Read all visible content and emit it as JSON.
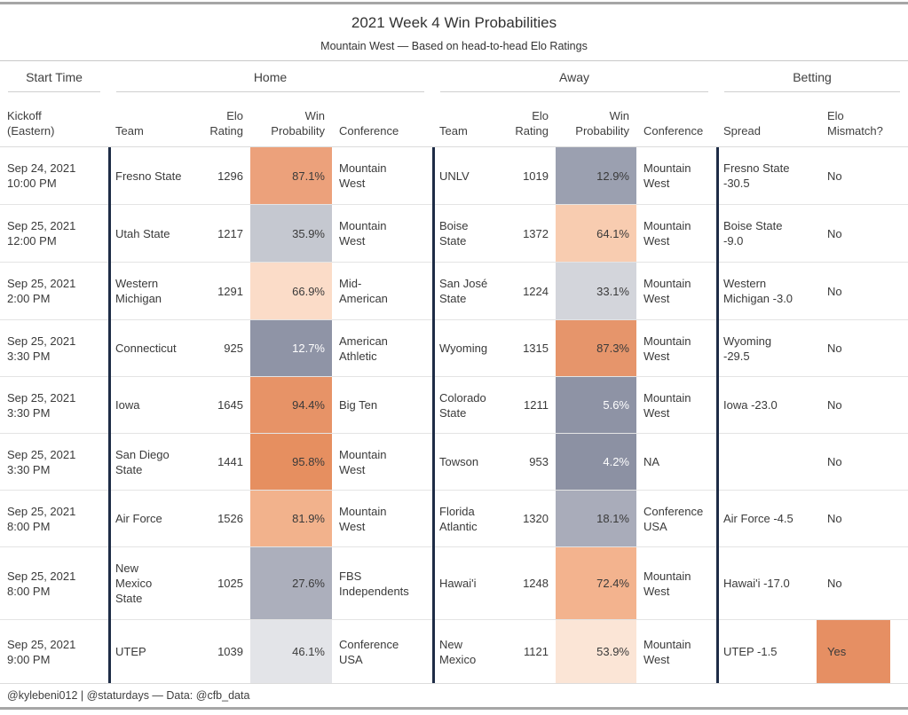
{
  "title": "2021 Week 4 Win Probabilities",
  "subtitle": "Mountain West — Based on head-to-head Elo Ratings",
  "footer": "@kylebeni012 | @staturdays — Data: @cfb_data",
  "colors": {
    "group_divider_navy": "#1e2c46",
    "table_border_gray": "#a6a6a6",
    "row_line_gray": "#e4e4e4",
    "mismatch_yes_orange": "#e68f63",
    "prob_low_slate": "#8c91a3",
    "prob_high_orange": "#e68f60",
    "text_dark": "#3a3a3a",
    "text_on_dark": "#ffffff"
  },
  "table": {
    "groups": {
      "start_time": "Start Time",
      "home": "Home",
      "away": "Away",
      "betting": "Betting"
    },
    "headers": {
      "kickoff": "Kickoff (Eastern)",
      "team": "Team",
      "elo": "Elo Rating",
      "win": "Win Probability",
      "conference": "Conference",
      "spread": "Spread",
      "mismatch": "Elo Mismatch?"
    },
    "rows": [
      {
        "kickoff_date": "Sep 24, 2021",
        "kickoff_time": "10:00 PM",
        "home": {
          "team": "Fresno State",
          "elo": "1296",
          "win": "87.1%",
          "win_bg": "#eca17b",
          "conference": "Mountain West"
        },
        "away": {
          "team": "UNLV",
          "elo": "1019",
          "win": "12.9%",
          "win_bg": "#9ba0b0",
          "conference": "Mountain West"
        },
        "betting": {
          "spread": "Fresno State -30.5",
          "mismatch": "No"
        }
      },
      {
        "kickoff_date": "Sep 25, 2021",
        "kickoff_time": "12:00 PM",
        "home": {
          "team": "Utah State",
          "elo": "1217",
          "win": "35.9%",
          "win_bg": "#c5c8d0",
          "conference": "Mountain West"
        },
        "away": {
          "team": "Boise State",
          "elo": "1372",
          "win": "64.1%",
          "win_bg": "#f8ccb0",
          "conference": "Mountain West"
        },
        "betting": {
          "spread": "Boise State -9.0",
          "mismatch": "No"
        }
      },
      {
        "kickoff_date": "Sep 25, 2021",
        "kickoff_time": "2:00 PM",
        "home": {
          "team": "Western Michigan",
          "elo": "1291",
          "win": "66.9%",
          "win_bg": "#fbdcc8",
          "conference": "Mid-American"
        },
        "away": {
          "team": "San José State",
          "elo": "1224",
          "win": "33.1%",
          "win_bg": "#d3d5db",
          "conference": "Mountain West"
        },
        "betting": {
          "spread": "Western Michigan -3.0",
          "mismatch": "No"
        }
      },
      {
        "kickoff_date": "Sep 25, 2021",
        "kickoff_time": "3:30 PM",
        "home": {
          "team": "Connecticut",
          "elo": "925",
          "win": "12.7%",
          "win_bg": "#8f94a6",
          "win_fg": "#ffffff",
          "conference": "American Athletic"
        },
        "away": {
          "team": "Wyoming",
          "elo": "1315",
          "win": "87.3%",
          "win_bg": "#e6956b",
          "conference": "Mountain West"
        },
        "betting": {
          "spread": "Wyoming -29.5",
          "mismatch": "No"
        }
      },
      {
        "kickoff_date": "Sep 25, 2021",
        "kickoff_time": "3:30 PM",
        "home": {
          "team": "Iowa",
          "elo": "1645",
          "win": "94.4%",
          "win_bg": "#e79367",
          "conference": "Big Ten"
        },
        "away": {
          "team": "Colorado State",
          "elo": "1211",
          "win": "5.6%",
          "win_bg": "#8e93a5",
          "win_fg": "#ffffff",
          "conference": "Mountain West"
        },
        "betting": {
          "spread": "Iowa -23.0",
          "mismatch": "No"
        }
      },
      {
        "kickoff_date": "Sep 25, 2021",
        "kickoff_time": "3:30 PM",
        "home": {
          "team": "San Diego State",
          "elo": "1441",
          "win": "95.8%",
          "win_bg": "#e68f60",
          "conference": "Mountain West"
        },
        "away": {
          "team": "Towson",
          "elo": "953",
          "win": "4.2%",
          "win_bg": "#8c91a3",
          "win_fg": "#ffffff",
          "conference": "NA"
        },
        "betting": {
          "spread": "",
          "mismatch": "No"
        }
      },
      {
        "kickoff_date": "Sep 25, 2021",
        "kickoff_time": "8:00 PM",
        "home": {
          "team": "Air Force",
          "elo": "1526",
          "win": "81.9%",
          "win_bg": "#f2b28c",
          "conference": "Mountain West"
        },
        "away": {
          "team": "Florida Atlantic",
          "elo": "1320",
          "win": "18.1%",
          "win_bg": "#a9acba",
          "conference": "Conference USA"
        },
        "betting": {
          "spread": "Air Force -4.5",
          "mismatch": "No"
        }
      },
      {
        "kickoff_date": "Sep 25, 2021",
        "kickoff_time": "8:00 PM",
        "home": {
          "team": "New Mexico State",
          "elo": "1025",
          "win": "27.6%",
          "win_bg": "#acafbc",
          "conference": "FBS Independents"
        },
        "away": {
          "team": "Hawai'i",
          "elo": "1248",
          "win": "72.4%",
          "win_bg": "#f3b38e",
          "conference": "Mountain West"
        },
        "betting": {
          "spread": "Hawai'i -17.0",
          "mismatch": "No"
        }
      },
      {
        "kickoff_date": "Sep 25, 2021",
        "kickoff_time": "9:00 PM",
        "home": {
          "team": "UTEP",
          "elo": "1039",
          "win": "46.1%",
          "win_bg": "#e3e4e8",
          "conference": "Conference USA"
        },
        "away": {
          "team": "New Mexico",
          "elo": "1121",
          "win": "53.9%",
          "win_bg": "#fbe5d6",
          "conference": "Mountain West"
        },
        "betting": {
          "spread": "UTEP -1.5",
          "mismatch": "Yes",
          "mismatch_bg": "#e68f63"
        }
      }
    ]
  },
  "chart_data": {
    "type": "table",
    "title": "2021 Week 4 Win Probabilities",
    "subtitle": "Mountain West — Based on head-to-head Elo Ratings",
    "column_groups": [
      "Start Time",
      "Home",
      "Away",
      "Betting"
    ],
    "headers": [
      "Kickoff (Eastern)",
      "Home Team",
      "Home Elo Rating",
      "Home Win Probability",
      "Home Conference",
      "Away Team",
      "Away Elo Rating",
      "Away Win Probability",
      "Away Conference",
      "Spread",
      "Elo Mismatch?"
    ],
    "rows": [
      [
        "Sep 24, 2021 10:00 PM",
        "Fresno State",
        1296,
        "87.1%",
        "Mountain West",
        "UNLV",
        1019,
        "12.9%",
        "Mountain West",
        "Fresno State -30.5",
        "No"
      ],
      [
        "Sep 25, 2021 12:00 PM",
        "Utah State",
        1217,
        "35.9%",
        "Mountain West",
        "Boise State",
        1372,
        "64.1%",
        "Mountain West",
        "Boise State -9.0",
        "No"
      ],
      [
        "Sep 25, 2021 2:00 PM",
        "Western Michigan",
        1291,
        "66.9%",
        "Mid-American",
        "San José State",
        1224,
        "33.1%",
        "Mountain West",
        "Western Michigan -3.0",
        "No"
      ],
      [
        "Sep 25, 2021 3:30 PM",
        "Connecticut",
        925,
        "12.7%",
        "American Athletic",
        "Wyoming",
        1315,
        "87.3%",
        "Mountain West",
        "Wyoming -29.5",
        "No"
      ],
      [
        "Sep 25, 2021 3:30 PM",
        "Iowa",
        1645,
        "94.4%",
        "Big Ten",
        "Colorado State",
        1211,
        "5.6%",
        "Mountain West",
        "Iowa -23.0",
        "No"
      ],
      [
        "Sep 25, 2021 3:30 PM",
        "San Diego State",
        1441,
        "95.8%",
        "Mountain West",
        "Towson",
        953,
        "4.2%",
        "NA",
        "",
        "No"
      ],
      [
        "Sep 25, 2021 8:00 PM",
        "Air Force",
        1526,
        "81.9%",
        "Mountain West",
        "Florida Atlantic",
        1320,
        "18.1%",
        "Conference USA",
        "Air Force -4.5",
        "No"
      ],
      [
        "Sep 25, 2021 8:00 PM",
        "New Mexico State",
        1025,
        "27.6%",
        "FBS Independents",
        "Hawai'i",
        1248,
        "72.4%",
        "Mountain West",
        "Hawai'i -17.0",
        "No"
      ],
      [
        "Sep 25, 2021 9:00 PM",
        "UTEP",
        1039,
        "46.1%",
        "Conference USA",
        "New Mexico",
        1121,
        "53.9%",
        "Mountain West",
        "UTEP -1.5",
        "Yes"
      ]
    ]
  }
}
